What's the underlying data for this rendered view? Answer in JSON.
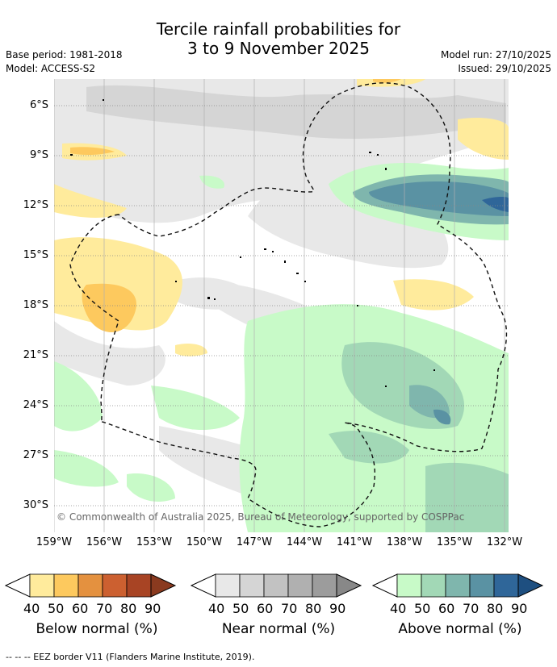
{
  "header": {
    "title_line1": "Tercile rainfall probabilities for",
    "title_line2": "3 to 9 November 2025",
    "base_period": "Base period: 1981-2018",
    "model": "Model: ACCESS-S2",
    "model_run": "Model run: 27/10/2025",
    "issued": "Issued: 29/10/2025"
  },
  "map": {
    "lat_labels": [
      "6°S",
      "9°S",
      "12°S",
      "15°S",
      "18°S",
      "21°S",
      "24°S",
      "27°S",
      "30°S"
    ],
    "lon_labels": [
      "159°W",
      "156°W",
      "153°W",
      "150°W",
      "147°W",
      "144°W",
      "141°W",
      "138°W",
      "135°W",
      "132°W"
    ],
    "copyright": "© Commonwealth of Australia 2025, Bureau of Meteorology, supported by COSPPac"
  },
  "legend": {
    "ticks": [
      "40",
      "50",
      "60",
      "70",
      "80",
      "90"
    ],
    "below": {
      "title": "Below normal (%)",
      "colors": [
        "#ffeb9c",
        "#fdc95e",
        "#e4913f",
        "#cc6030",
        "#a84424",
        "#8a3a1f"
      ]
    },
    "near": {
      "title": "Near normal (%)",
      "colors": [
        "#e8e8e8",
        "#d5d5d5",
        "#c2c2c2",
        "#b0b0b0",
        "#9c9c9c",
        "#888888"
      ]
    },
    "above": {
      "title": "Above normal (%)",
      "colors": [
        "#c8fac8",
        "#a2d8b6",
        "#7fb6ad",
        "#5a92a3",
        "#2f6699",
        "#1e4f80"
      ]
    }
  },
  "footnote": "--  --  -- EEZ border V11 (Flanders Marine Institute, 2019)."
}
